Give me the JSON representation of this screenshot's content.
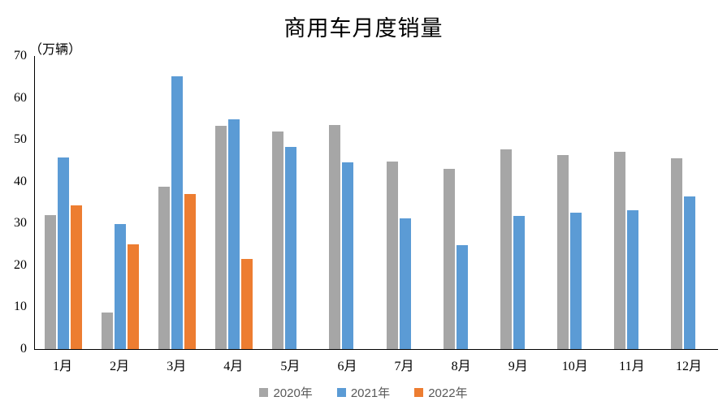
{
  "chart_data": {
    "type": "bar",
    "title": "商用车月度销量",
    "unit_label": "（万辆）",
    "categories": [
      "1月",
      "2月",
      "3月",
      "4月",
      "5月",
      "6月",
      "7月",
      "8月",
      "9月",
      "10月",
      "11月",
      "12月"
    ],
    "series": [
      {
        "name": "2020年",
        "color": "#a6a6a6",
        "values": [
          32.0,
          8.8,
          38.8,
          53.4,
          52.0,
          53.6,
          44.7,
          43.1,
          47.7,
          46.4,
          47.2,
          45.6
        ]
      },
      {
        "name": "2021年",
        "color": "#5b9bd5",
        "values": [
          45.8,
          29.9,
          65.2,
          54.8,
          48.2,
          44.6,
          31.2,
          24.8,
          31.9,
          32.6,
          33.1,
          36.4
        ]
      },
      {
        "name": "2022年",
        "color": "#ed7d31",
        "values": [
          34.4,
          25.1,
          37.0,
          21.6,
          null,
          null,
          null,
          null,
          null,
          null,
          null,
          null
        ]
      }
    ],
    "ylim": [
      0,
      70
    ],
    "ytick_step": 10,
    "grid": false,
    "legend_position": "bottom",
    "axis_color": "#000000"
  }
}
